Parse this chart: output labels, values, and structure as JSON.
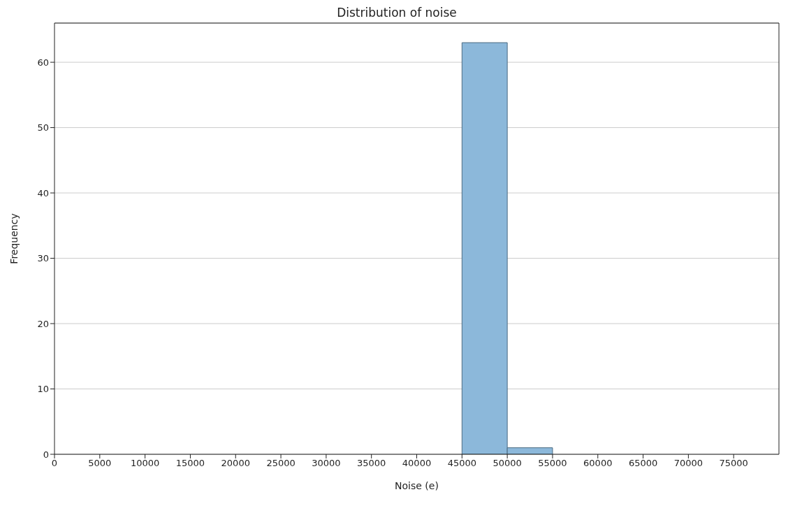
{
  "chart_data": {
    "type": "histogram",
    "title": "Distribution of noise",
    "xlabel": "Noise (e)",
    "ylabel": "Frequency",
    "bins": [
      45000,
      50000,
      55000
    ],
    "values": [
      63,
      1
    ],
    "color": "#8cb8da",
    "xlim": [
      0,
      80000
    ],
    "xticks": [
      0,
      5000,
      10000,
      15000,
      20000,
      25000,
      30000,
      35000,
      40000,
      45000,
      50000,
      55000,
      60000,
      65000,
      70000,
      75000
    ],
    "ylim": [
      0,
      66
    ],
    "yticks": [
      0,
      10,
      20,
      30,
      40,
      50,
      60
    ],
    "grid": "y"
  }
}
